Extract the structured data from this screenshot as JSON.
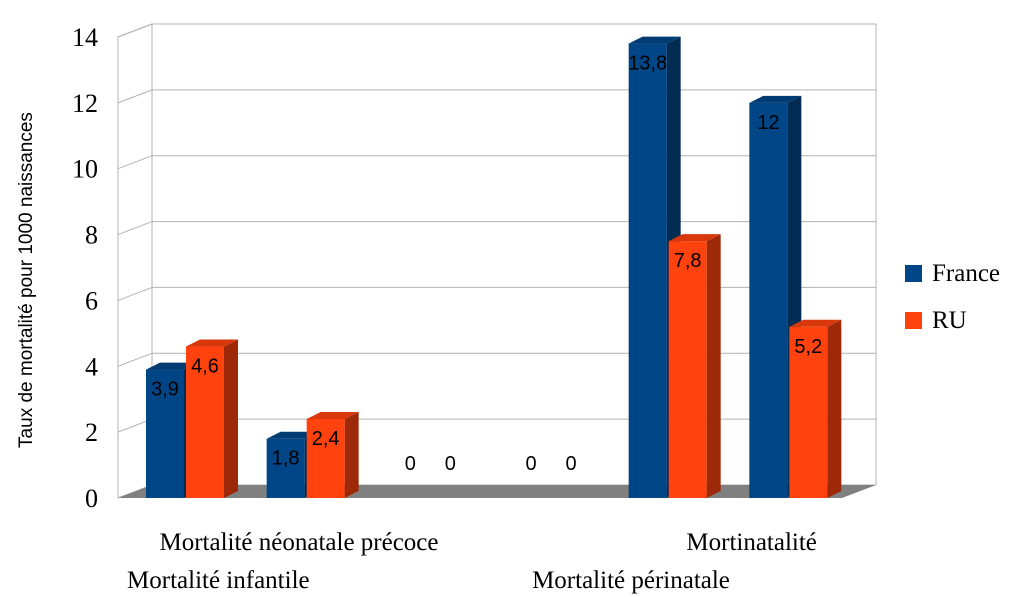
{
  "chart_data": {
    "type": "bar",
    "style": "3d-clustered",
    "categories": [
      "Mortalité infantile",
      "Mortalité néonatale précoce",
      "",
      "",
      "Mortalité périnatale",
      "Mortinatalité"
    ],
    "series": [
      {
        "name": "France",
        "values": [
          3.9,
          1.8,
          0,
          0,
          13.8,
          12
        ],
        "labels": [
          "3,9",
          "1,8",
          "0",
          "0",
          "13,8",
          "12"
        ],
        "color": "#004586"
      },
      {
        "name": "RU",
        "values": [
          4.6,
          2.4,
          0,
          0,
          7.8,
          5.2
        ],
        "labels": [
          "4,6",
          "2,4",
          "0",
          "0",
          "7,8",
          "5,2"
        ],
        "color": "#ff420e"
      }
    ],
    "ylabel": "Taux de mortalité pour 1000 naissances",
    "ylim": [
      0,
      14
    ],
    "yticks": [
      "0",
      "2",
      "4",
      "6",
      "8",
      "10",
      "12",
      "14"
    ],
    "grid": true,
    "legend": "right"
  }
}
